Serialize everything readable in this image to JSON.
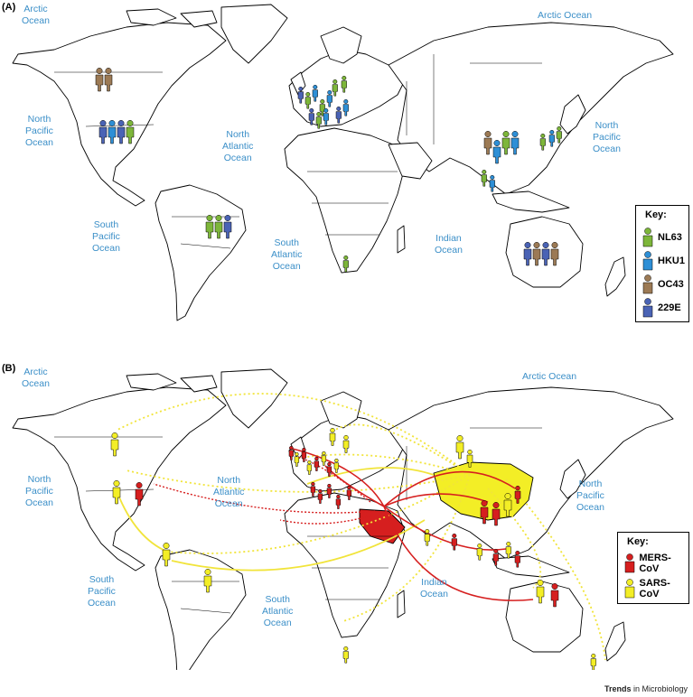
{
  "panel_a": {
    "label": "(A)",
    "oceans": [
      {
        "text": "Arctic\nOcean"
      },
      {
        "text": "Arctic Ocean"
      },
      {
        "text": "North\nPacific\nOcean"
      },
      {
        "text": "North\nAtlantic\nOcean"
      },
      {
        "text": "North\nPacific\nOcean"
      },
      {
        "text": "South\nPacific\nOcean"
      },
      {
        "text": "South\nAtlantic\nOcean"
      },
      {
        "text": "Indian\nOcean"
      }
    ],
    "key": {
      "title": "Key:",
      "items": [
        {
          "label": "NL63",
          "color": "#7db63a"
        },
        {
          "label": "HKU1",
          "color": "#2e8fd6"
        },
        {
          "label": "OC43",
          "color": "#9c7a55"
        },
        {
          "label": "229E",
          "color": "#4a63b5"
        }
      ]
    }
  },
  "panel_b": {
    "label": "(B)",
    "oceans": [
      {
        "text": "Arctic\nOcean"
      },
      {
        "text": "Arctic Ocean"
      },
      {
        "text": "North\nPacific\nOcean"
      },
      {
        "text": "North\nAtlantic\nOcean"
      },
      {
        "text": "North\nPacific\nOcean"
      },
      {
        "text": "South\nPacific\nOcean"
      },
      {
        "text": "South\nAtlantic\nOcean"
      },
      {
        "text": "Indian\nOcean"
      }
    ],
    "key": {
      "title": "Key:",
      "items": [
        {
          "label": "MERS-CoV",
          "color": "#d61f1f"
        },
        {
          "label": "SARS-CoV",
          "color": "#f3ee26"
        }
      ]
    }
  },
  "credit": {
    "bold": "Trends",
    "rest": " in Microbiology"
  }
}
